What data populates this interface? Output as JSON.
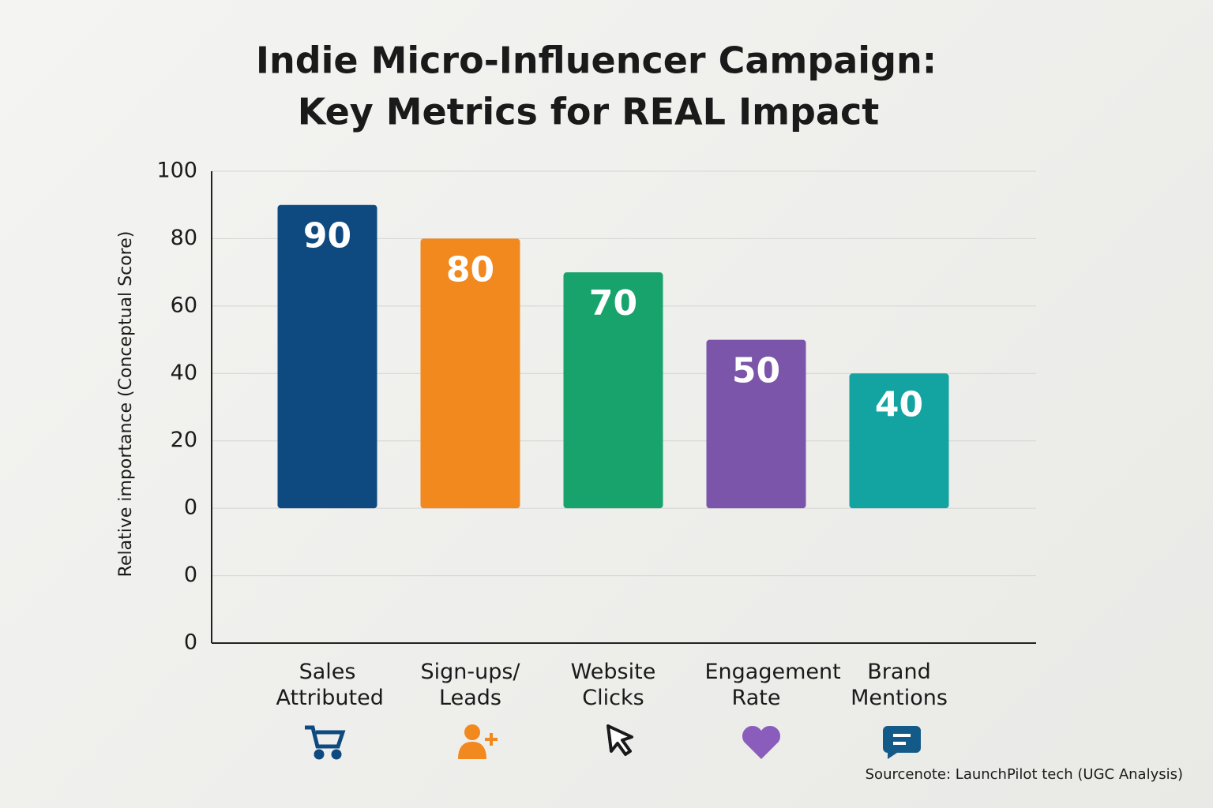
{
  "chart_data": {
    "type": "bar",
    "title": "Indie Micro-Influencer Campaign:",
    "subtitle": "Key Metrics for REAL Impact",
    "y_label": "Relative importance (Conceptual Score)",
    "categories": [
      "Sales Attributed",
      "Sign-ups/ Leads",
      "Website Clicks",
      "Engagement Rate",
      "Brand Mentions"
    ],
    "values": [
      90,
      80,
      70,
      50,
      40
    ],
    "colors": [
      "#0e4a7f",
      "#f2891e",
      "#19a36c",
      "#7b55a9",
      "#13a3a1"
    ],
    "ylim": [
      -40,
      100
    ],
    "yticks": [
      100,
      80,
      60,
      40,
      20,
      0,
      {
        "value": -20,
        "label": "0"
      },
      {
        "value": -40,
        "label": "0"
      }
    ],
    "grid": true,
    "source_note": "Sourcenote: LaunchPilot tech (UGC Analysis)"
  }
}
